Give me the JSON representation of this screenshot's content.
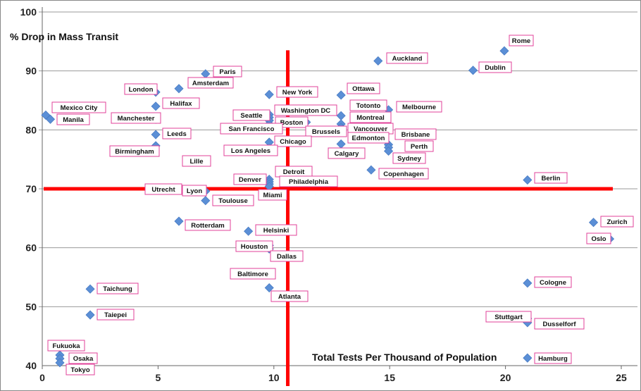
{
  "chart_data": {
    "type": "scatter",
    "title": "",
    "xlabel": "Total Tests Per Thousand of Population",
    "ylabel": "% Drop in Mass Transit",
    "xlim": [
      0,
      25
    ],
    "ylim": [
      40,
      100
    ],
    "xticks": [
      "0",
      "5",
      "10",
      "15",
      "20",
      "25"
    ],
    "yticks": [
      "40",
      "50",
      "60",
      "70",
      "80",
      "90",
      "100"
    ],
    "grid": "horizontal",
    "colors": {
      "marker": "#5b8fd6",
      "label_border": "#e0409a",
      "reference_line": "#ff0000",
      "grid": "#9a9a9a"
    },
    "reference_lines": {
      "vertical_x": 10.6,
      "horizontal_y": 70
    },
    "points": [
      {
        "name": "Mexico City",
        "x": 0.15,
        "y": 82.5
      },
      {
        "name": "Manila",
        "x": 0.35,
        "y": 81.8
      },
      {
        "name": "London",
        "x": 4.9,
        "y": 86.4
      },
      {
        "name": "Halifax",
        "x": 4.9,
        "y": 84.0
      },
      {
        "name": "Manchester",
        "x": 4.9,
        "y": 81.8
      },
      {
        "name": "Leeds",
        "x": 4.9,
        "y": 79.2
      },
      {
        "name": "Birmingham",
        "x": 4.9,
        "y": 77.3
      },
      {
        "name": "Amsterdam",
        "x": 5.9,
        "y": 87.0
      },
      {
        "name": "Paris",
        "x": 7.05,
        "y": 89.5
      },
      {
        "name": "Lille",
        "x": 7.05,
        "y": 74.7
      },
      {
        "name": "Utrecht",
        "x": 5.9,
        "y": 70.1
      },
      {
        "name": "Lyon",
        "x": 7.05,
        "y": 69.6
      },
      {
        "name": "Toulouse",
        "x": 7.05,
        "y": 68.0
      },
      {
        "name": "Rotterdam",
        "x": 5.9,
        "y": 64.5
      },
      {
        "name": "New York",
        "x": 9.8,
        "y": 86.0
      },
      {
        "name": "Washington DC",
        "x": 9.8,
        "y": 82.6
      },
      {
        "name": "Seattle",
        "x": 9.8,
        "y": 82.1
      },
      {
        "name": "Boston",
        "x": 9.8,
        "y": 81.6
      },
      {
        "name": "San Francisco",
        "x": 9.8,
        "y": 81.0
      },
      {
        "name": "Brussels",
        "x": 11.4,
        "y": 81.3
      },
      {
        "name": "Chicago",
        "x": 9.8,
        "y": 77.9
      },
      {
        "name": "Los Angeles",
        "x": 9.8,
        "y": 76.4
      },
      {
        "name": "Detroit",
        "x": 9.8,
        "y": 71.6
      },
      {
        "name": "Denver",
        "x": 9.8,
        "y": 71.2
      },
      {
        "name": "Philadelphia",
        "x": 9.8,
        "y": 70.8
      },
      {
        "name": "Miami",
        "x": 9.8,
        "y": 70.4
      },
      {
        "name": "Ottawa",
        "x": 12.9,
        "y": 85.9
      },
      {
        "name": "Totonto",
        "x": 12.9,
        "y": 82.4
      },
      {
        "name": "Montreal",
        "x": 12.9,
        "y": 81.0
      },
      {
        "name": "Vancouver",
        "x": 12.9,
        "y": 80.4
      },
      {
        "name": "Edmonton",
        "x": 12.9,
        "y": 79.6
      },
      {
        "name": "Calgary",
        "x": 12.9,
        "y": 77.6
      },
      {
        "name": "Melbourne",
        "x": 14.95,
        "y": 83.4
      },
      {
        "name": "Brisbane",
        "x": 14.95,
        "y": 77.5
      },
      {
        "name": "Perth",
        "x": 14.95,
        "y": 77.0
      },
      {
        "name": "Sydney",
        "x": 14.95,
        "y": 76.4
      },
      {
        "name": "Copenhagen",
        "x": 14.2,
        "y": 73.2
      },
      {
        "name": "Auckland",
        "x": 14.5,
        "y": 91.7
      },
      {
        "name": "Rome",
        "x": 19.95,
        "y": 93.4
      },
      {
        "name": "Dublin",
        "x": 18.6,
        "y": 90.1
      },
      {
        "name": "Berlin",
        "x": 20.95,
        "y": 71.5
      },
      {
        "name": "Zurich",
        "x": 23.8,
        "y": 64.3
      },
      {
        "name": "Oslo",
        "x": 24.5,
        "y": 61.5
      },
      {
        "name": "Helsinki",
        "x": 8.9,
        "y": 62.8
      },
      {
        "name": "Houston",
        "x": 9.8,
        "y": 60.4
      },
      {
        "name": "Dallas",
        "x": 9.8,
        "y": 59.8
      },
      {
        "name": "Baltimore",
        "x": 9.8,
        "y": 55.6
      },
      {
        "name": "Atlanta",
        "x": 9.8,
        "y": 53.2
      },
      {
        "name": "Taichung",
        "x": 2.07,
        "y": 53.0
      },
      {
        "name": "Taiepei",
        "x": 2.07,
        "y": 48.6
      },
      {
        "name": "Fukuoka",
        "x": 0.76,
        "y": 41.8
      },
      {
        "name": "Osaka",
        "x": 0.76,
        "y": 41.2
      },
      {
        "name": "Tokyo",
        "x": 0.76,
        "y": 40.5
      },
      {
        "name": "Cologne",
        "x": 20.95,
        "y": 54.0
      },
      {
        "name": "Stuttgart",
        "x": 20.95,
        "y": 48.0
      },
      {
        "name": "Dusselforf",
        "x": 20.95,
        "y": 47.3
      },
      {
        "name": "Hamburg",
        "x": 20.95,
        "y": 41.3
      }
    ]
  }
}
